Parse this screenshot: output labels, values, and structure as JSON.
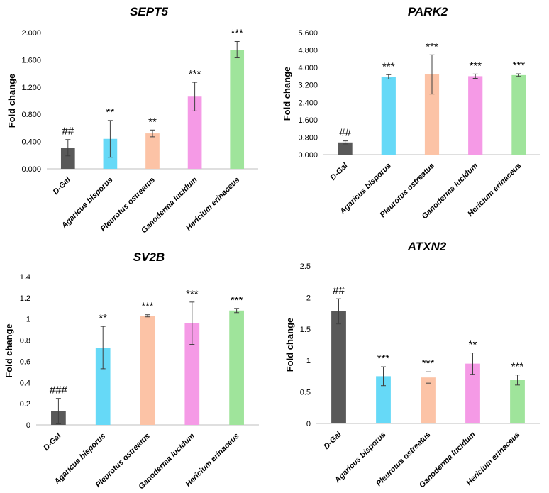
{
  "chart_data": [
    {
      "type": "bar",
      "title": "SEPT5",
      "ylabel": "Fold change",
      "xlabel": "",
      "categories": [
        "D-Gal",
        "Agaricus bisporus",
        "Pleurotus ostreatus",
        "Ganoderma lucidum",
        "Hericium erinaceus"
      ],
      "values": [
        0.31,
        0.44,
        0.52,
        1.06,
        1.75
      ],
      "errors": [
        0.12,
        0.27,
        0.05,
        0.21,
        0.12
      ],
      "annotations": [
        "##",
        "**",
        "**",
        "***",
        "***"
      ],
      "colors": [
        "#595959",
        "#66d9f7",
        "#fcc3a6",
        "#f59ae6",
        "#9fe49b"
      ],
      "ylim": [
        0,
        2
      ],
      "yticks": [
        "0.000",
        "0.400",
        "0.800",
        "1.200",
        "1.600",
        "2.000"
      ],
      "ytick_values": [
        0,
        0.4,
        0.8,
        1.2,
        1.6,
        2.0
      ]
    },
    {
      "type": "bar",
      "title": "PARK2",
      "ylabel": "Fold change",
      "xlabel": "",
      "categories": [
        "D-Gal",
        "Agaricus bisporus",
        "Pleurotus ostreatus",
        "Ganoderma lucidum",
        "Hericium erinaceus"
      ],
      "values": [
        0.56,
        3.57,
        3.68,
        3.6,
        3.65
      ],
      "errors": [
        0.07,
        0.1,
        0.9,
        0.1,
        0.06
      ],
      "annotations": [
        "##",
        "***",
        "***",
        "***",
        "***"
      ],
      "colors": [
        "#595959",
        "#66d9f7",
        "#fcc3a6",
        "#f59ae6",
        "#9fe49b"
      ],
      "ylim": [
        0,
        5.6
      ],
      "yticks": [
        "0.000",
        "0.800",
        "1.600",
        "2.400",
        "3.200",
        "4.000",
        "4.800",
        "5.600"
      ],
      "ytick_values": [
        0,
        0.8,
        1.6,
        2.4,
        3.2,
        4.0,
        4.8,
        5.6
      ]
    },
    {
      "type": "bar",
      "title": "SV2B",
      "ylabel": "Fold change",
      "xlabel": "",
      "categories": [
        "D-Gal",
        "Agaricus bisporus",
        "Pleurotus ostreatus",
        "Ganoderma lucidum",
        "Hericium erinaceus"
      ],
      "values": [
        0.13,
        0.73,
        1.03,
        0.96,
        1.08
      ],
      "errors": [
        0.12,
        0.2,
        0.01,
        0.2,
        0.02
      ],
      "annotations": [
        "###",
        "**",
        "***",
        "***",
        "***"
      ],
      "colors": [
        "#595959",
        "#66d9f7",
        "#fcc3a6",
        "#f59ae6",
        "#9fe49b"
      ],
      "ylim": [
        0,
        1.4
      ],
      "yticks": [
        "0",
        "0.2",
        "0.4",
        "0.6",
        "0.8",
        "1",
        "1.2",
        "1.4"
      ],
      "ytick_values": [
        0,
        0.2,
        0.4,
        0.6,
        0.8,
        1.0,
        1.2,
        1.4
      ]
    },
    {
      "type": "bar",
      "title": "ATXN2",
      "ylabel": "Fold change",
      "xlabel": "",
      "categories": [
        "D-Gal",
        "Agaricus bisporus",
        "Pleurotus ostreatus",
        "Ganoderma lucidum",
        "Hericium erinaceus"
      ],
      "values": [
        1.78,
        0.75,
        0.73,
        0.95,
        0.69
      ],
      "errors": [
        0.2,
        0.15,
        0.09,
        0.17,
        0.08
      ],
      "annotations": [
        "##",
        "***",
        "***",
        "**",
        "***"
      ],
      "colors": [
        "#595959",
        "#66d9f7",
        "#fcc3a6",
        "#f59ae6",
        "#9fe49b"
      ],
      "ylim": [
        0,
        2.5
      ],
      "yticks": [
        "0",
        "0.5",
        "1",
        "1.5",
        "2",
        "2.5"
      ],
      "ytick_values": [
        0,
        0.5,
        1.0,
        1.5,
        2.0,
        2.5
      ]
    }
  ]
}
